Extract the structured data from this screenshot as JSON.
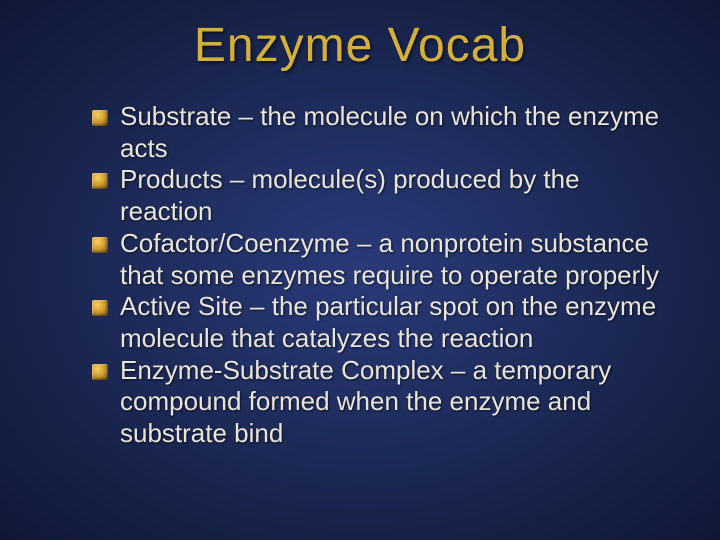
{
  "slide": {
    "title": "Enzyme Vocab",
    "title_color": "#d4b038",
    "title_fontsize": 48,
    "title_font": "Impact",
    "body_color": "#e8e4d8",
    "body_fontsize": 26,
    "body_font": "Arial",
    "background_gradient": [
      "#2a3a7a",
      "#1f2d5e",
      "#172248",
      "#0f1838"
    ],
    "bullet_color": "#d4a030",
    "items": [
      "Substrate – the molecule on which the enzyme acts",
      "Products – molecule(s) produced by the reaction",
      "Cofactor/Coenzyme – a nonprotein substance that some enzymes require to operate properly",
      "Active Site – the particular spot on the enzyme molecule that catalyzes the reaction",
      "Enzyme-Substrate Complex – a temporary compound formed when the enzyme and substrate bind"
    ]
  }
}
